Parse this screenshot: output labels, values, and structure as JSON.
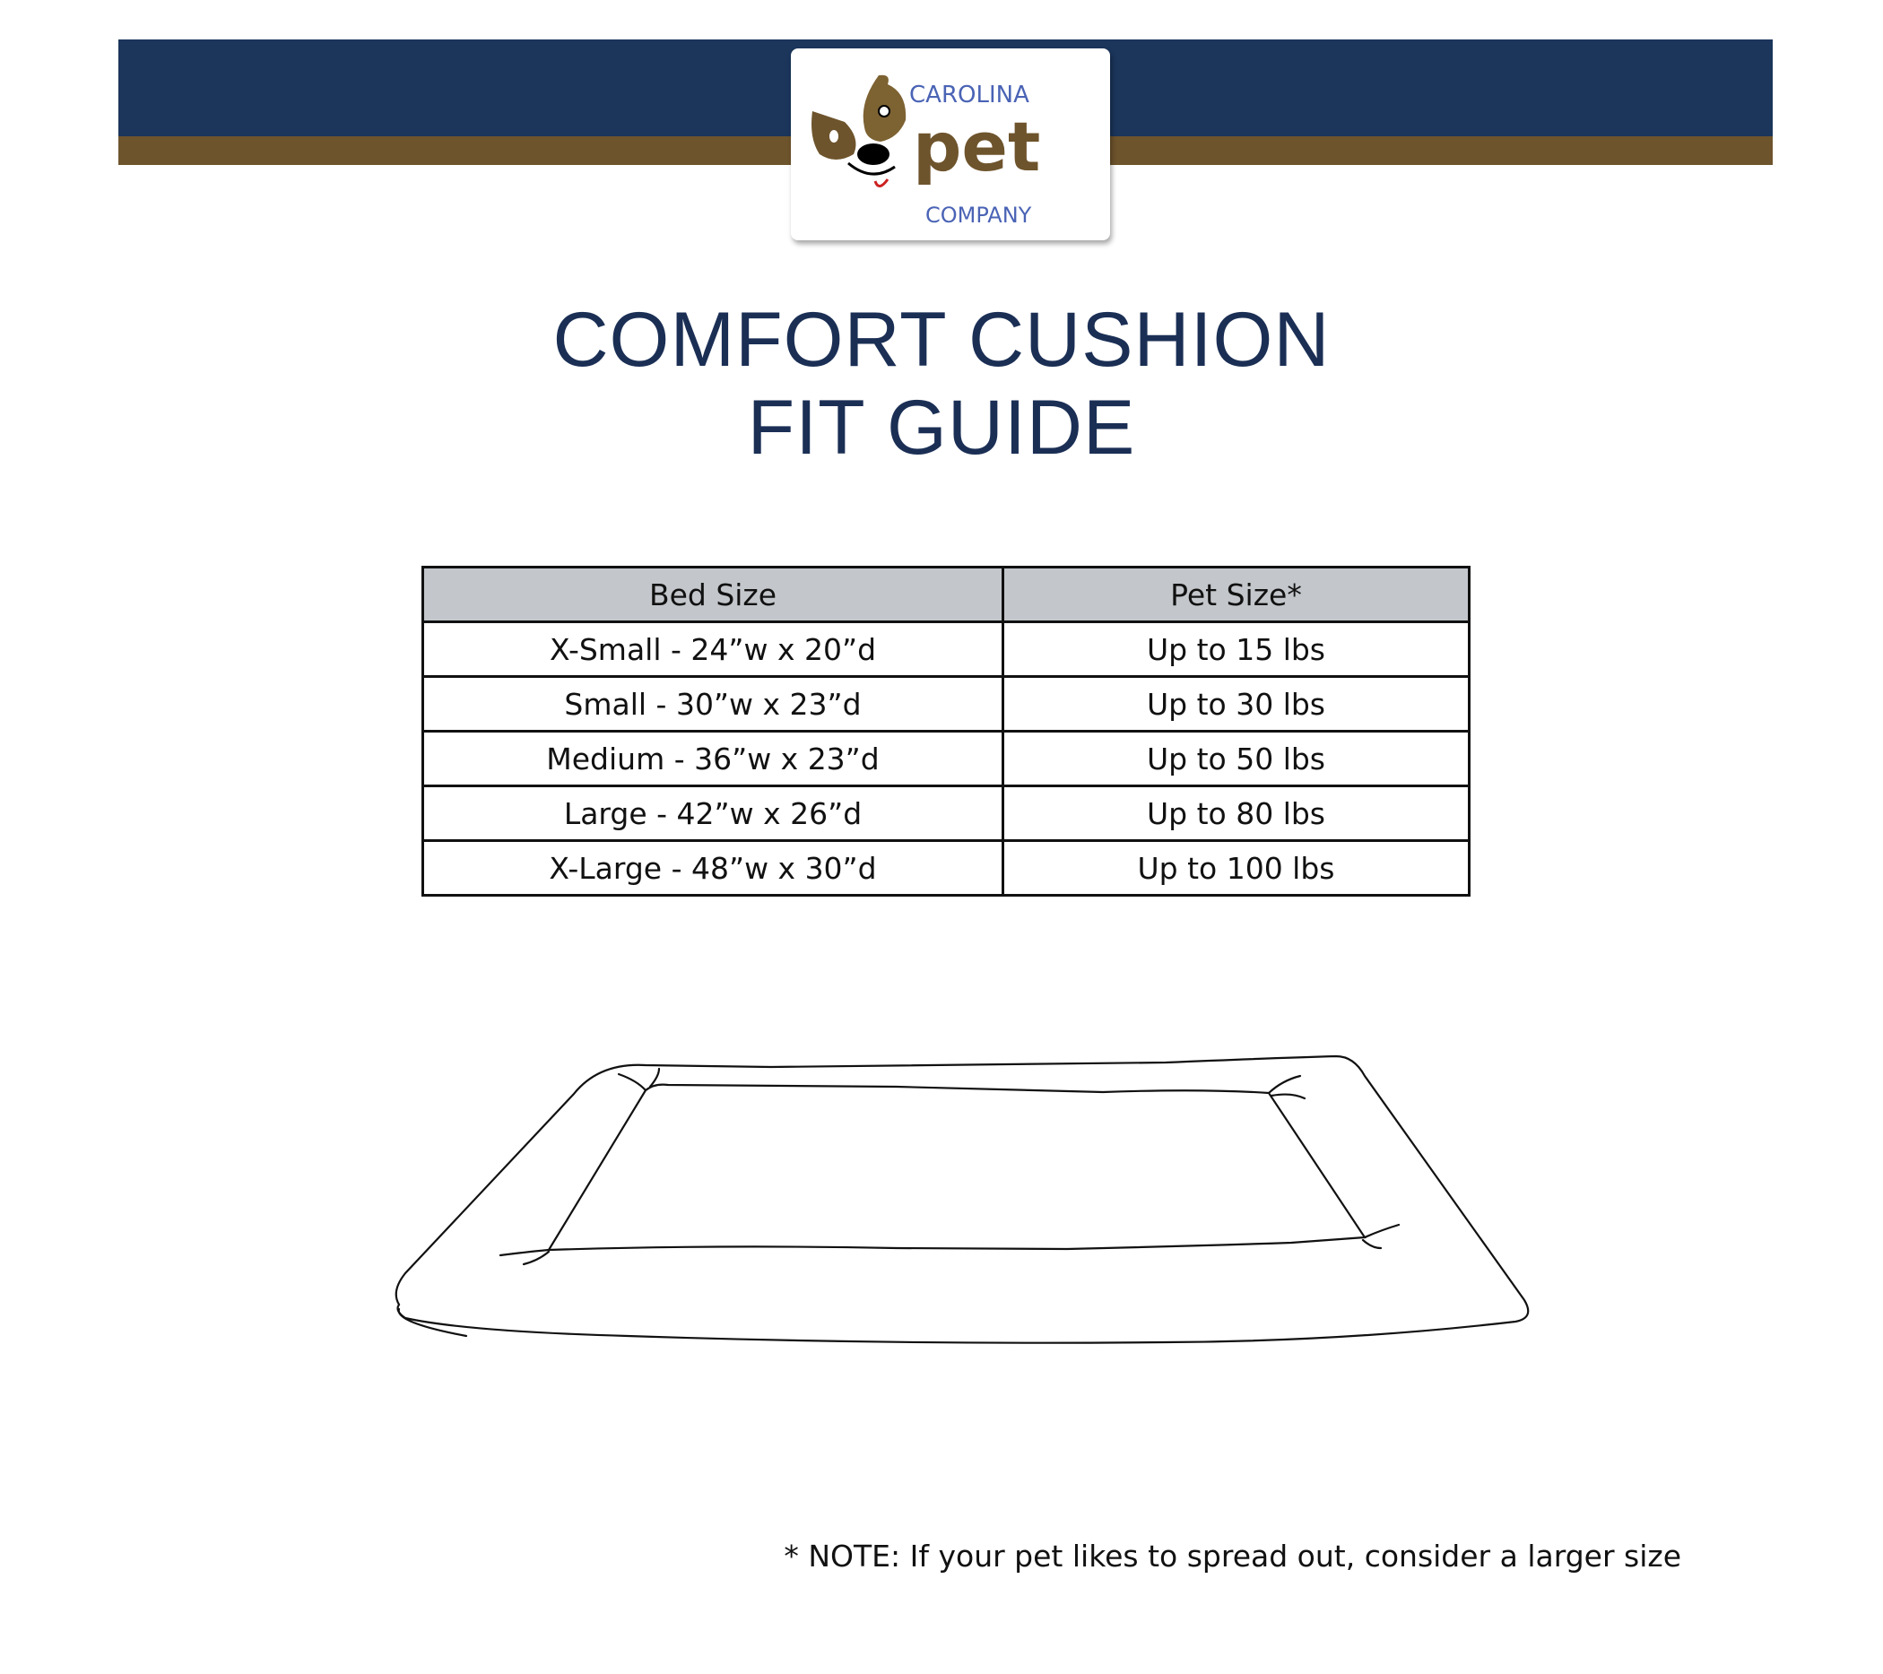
{
  "brand": {
    "logo_text_top": "CAROLINA",
    "logo_text_mid": "pet",
    "logo_text_bottom": "COMPANY"
  },
  "colors": {
    "navy": "#1b355b",
    "brown": "#6e542c",
    "logo_blue": "#4a63b5",
    "header_gray": "#c3c7cb"
  },
  "title": {
    "line1": "COMFORT CUSHION",
    "line2": "FIT GUIDE"
  },
  "table": {
    "headers": [
      "Bed Size",
      "Pet Size*"
    ],
    "rows": [
      [
        "X-Small - 24”w x 20”d",
        "Up to 15 lbs"
      ],
      [
        "Small - 30”w x 23”d",
        "Up to 30 lbs"
      ],
      [
        "Medium - 36”w x 23”d",
        "Up to 50 lbs"
      ],
      [
        "Large - 42”w x 26”d",
        "Up to 80 lbs"
      ],
      [
        "X-Large - 48”w x 30”d",
        "Up to 100 lbs"
      ]
    ]
  },
  "note": "* NOTE: If your pet likes to spread out, consider a larger size"
}
